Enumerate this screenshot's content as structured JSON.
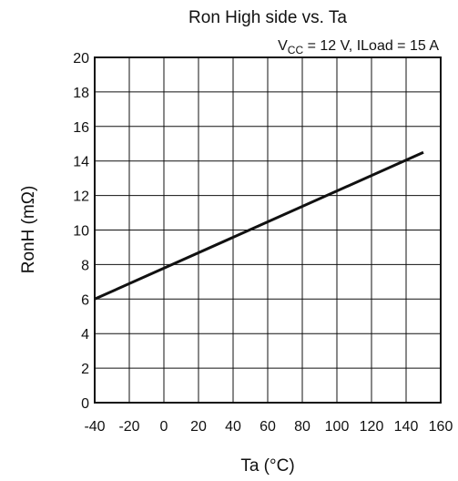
{
  "chart_data": {
    "type": "line",
    "title": "Ron High side vs. Ta",
    "subtitle": {
      "prefix": "V",
      "subscript": "CC",
      "suffix": " = 12 V, ILoad = 15 A"
    },
    "xlabel": "Ta  (°C)",
    "ylabel": "RonH  (mΩ)",
    "xlim": [
      -40,
      160
    ],
    "ylim": [
      0,
      20
    ],
    "x_ticks": [
      -40,
      -20,
      0,
      20,
      40,
      60,
      80,
      100,
      120,
      140,
      160
    ],
    "y_ticks": [
      0,
      2,
      4,
      6,
      8,
      10,
      12,
      14,
      16,
      18,
      20
    ],
    "grid": true,
    "series": [
      {
        "x": [
          -40,
          150
        ],
        "y": [
          6.0,
          14.5
        ]
      }
    ],
    "line_color": "#111111"
  }
}
